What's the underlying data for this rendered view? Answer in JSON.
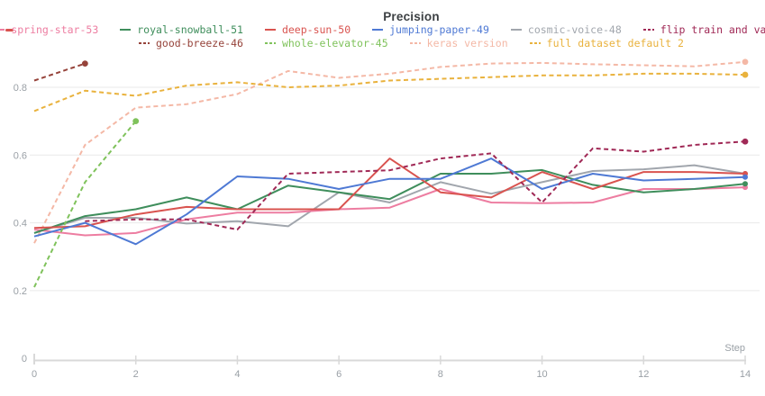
{
  "title": "Precision",
  "x_axis": {
    "label": "Step",
    "tick_labels": [
      "0",
      "2",
      "4",
      "6",
      "8",
      "10",
      "12",
      "14"
    ]
  },
  "y_axis": {
    "tick_labels": [
      "0",
      "0.2",
      "0.4",
      "0.6",
      "0.8"
    ]
  },
  "colors": {
    "background": "#ffffff",
    "title_text": "#3c4043",
    "axis_text": "#9aa0a6",
    "grid_line": "#e9e9e9",
    "axis_line": "#d9d9d9",
    "stray_mark": "#d9534f"
  },
  "chart_data": {
    "type": "line",
    "title": "Precision",
    "xlabel": "Step",
    "ylabel": "",
    "xlim": [
      0,
      14
    ],
    "ylim": [
      0,
      0.9
    ],
    "x_ticks": [
      0,
      2,
      4,
      6,
      8,
      10,
      12,
      14
    ],
    "y_ticks": [
      0,
      0.2,
      0.4,
      0.6,
      0.8
    ],
    "grid": "horizontal",
    "legend_position": "top",
    "series": [
      {
        "name": "spring-star-53",
        "color": "#ed7da1",
        "dash": "solid",
        "legend_row": 1,
        "x": [
          0,
          1,
          2,
          3,
          4,
          5,
          6,
          7,
          8,
          9,
          10,
          11,
          12,
          13,
          14
        ],
        "values": [
          0.38,
          0.363,
          0.37,
          0.41,
          0.43,
          0.43,
          0.44,
          0.445,
          0.5,
          0.46,
          0.458,
          0.46,
          0.5,
          0.5,
          0.505
        ]
      },
      {
        "name": "royal-snowball-51",
        "color": "#3f8e5c",
        "dash": "solid",
        "legend_row": 1,
        "x": [
          0,
          1,
          2,
          3,
          4,
          5,
          6,
          7,
          8,
          9,
          10,
          11,
          12,
          13,
          14
        ],
        "values": [
          0.37,
          0.42,
          0.44,
          0.475,
          0.44,
          0.51,
          0.49,
          0.47,
          0.545,
          0.545,
          0.556,
          0.512,
          0.49,
          0.5,
          0.515
        ]
      },
      {
        "name": "deep-sun-50",
        "color": "#d9534f",
        "dash": "solid",
        "legend_row": 1,
        "x": [
          0,
          1,
          2,
          3,
          4,
          5,
          6,
          7,
          8,
          9,
          10,
          11,
          12,
          13,
          14
        ],
        "values": [
          0.385,
          0.39,
          0.425,
          0.447,
          0.44,
          0.44,
          0.44,
          0.59,
          0.49,
          0.475,
          0.55,
          0.5,
          0.55,
          0.55,
          0.545
        ]
      },
      {
        "name": "jumping-paper-49",
        "color": "#4e79d4",
        "dash": "solid",
        "legend_row": 1,
        "x": [
          0,
          1,
          2,
          3,
          4,
          5,
          6,
          7,
          8,
          9,
          10,
          11,
          12,
          13,
          14
        ],
        "values": [
          0.36,
          0.4,
          0.337,
          0.425,
          0.537,
          0.53,
          0.5,
          0.53,
          0.53,
          0.59,
          0.5,
          0.545,
          0.525,
          0.53,
          0.535
        ]
      },
      {
        "name": "cosmic-voice-48",
        "color": "#a1a6ad",
        "dash": "solid",
        "legend_row": 1,
        "x": [
          0,
          1,
          2,
          3,
          4,
          5,
          6,
          7,
          8,
          9,
          10,
          11,
          12,
          13,
          14
        ],
        "values": [
          0.37,
          0.415,
          0.415,
          0.398,
          0.405,
          0.39,
          0.49,
          0.46,
          0.52,
          0.486,
          0.52,
          0.553,
          0.558,
          0.57,
          0.545
        ]
      },
      {
        "name": "flip train and valid sample",
        "color": "#a02956",
        "dash": "dashed",
        "legend_row": 1,
        "x": [
          1,
          2,
          3,
          4,
          5,
          6,
          7,
          8,
          9,
          10,
          11,
          12,
          13,
          14
        ],
        "values": [
          0.405,
          0.41,
          0.41,
          0.38,
          0.545,
          0.55,
          0.555,
          0.59,
          0.605,
          0.46,
          0.62,
          0.61,
          0.63,
          0.64
        ]
      },
      {
        "name": "good-breeze-46",
        "color": "#96433a",
        "dash": "dashed",
        "legend_row": 2,
        "x": [
          0,
          1
        ],
        "values": [
          0.82,
          0.87
        ]
      },
      {
        "name": "whole-elevator-45",
        "color": "#7fc25b",
        "dash": "dashed",
        "legend_row": 2,
        "x": [
          0,
          1,
          2
        ],
        "values": [
          0.21,
          0.52,
          0.7
        ]
      },
      {
        "name": "keras version",
        "color": "#f4b8a6",
        "dash": "dashed",
        "legend_row": 2,
        "x": [
          0,
          1,
          2,
          3,
          4,
          5,
          6,
          7,
          8,
          9,
          10,
          11,
          12,
          13,
          14
        ],
        "values": [
          0.34,
          0.63,
          0.74,
          0.75,
          0.78,
          0.848,
          0.828,
          0.84,
          0.86,
          0.87,
          0.872,
          0.868,
          0.865,
          0.862,
          0.875
        ]
      },
      {
        "name": "full dataset default 2",
        "color": "#e9b23d",
        "dash": "dashed",
        "legend_row": 2,
        "x": [
          0,
          1,
          2,
          3,
          4,
          5,
          6,
          7,
          8,
          9,
          10,
          11,
          12,
          13,
          14
        ],
        "values": [
          0.73,
          0.79,
          0.775,
          0.805,
          0.815,
          0.8,
          0.805,
          0.82,
          0.825,
          0.83,
          0.835,
          0.835,
          0.84,
          0.84,
          0.837
        ]
      }
    ]
  }
}
